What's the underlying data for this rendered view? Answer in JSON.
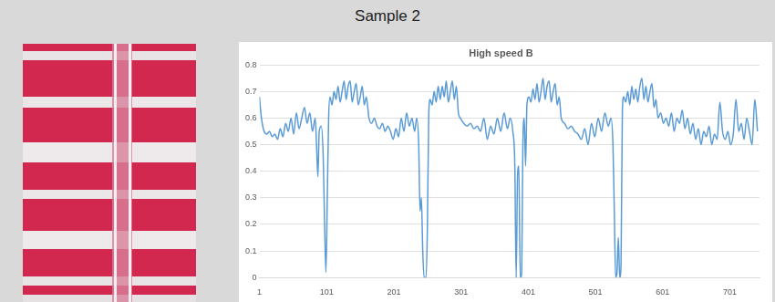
{
  "header": {
    "title": "Sample 2"
  },
  "chart_data": {
    "type": "line",
    "title": "High speed B",
    "x": [
      1,
      4,
      8,
      12,
      16,
      20,
      24,
      28,
      32,
      36,
      40,
      44,
      48,
      52,
      56,
      60,
      64,
      68,
      72,
      76,
      80,
      84,
      86,
      88,
      90,
      93,
      96,
      98,
      100,
      102,
      104,
      106,
      109,
      112,
      115,
      118,
      121,
      124,
      127,
      130,
      133,
      136,
      139,
      142,
      145,
      148,
      151,
      154,
      157,
      160,
      164,
      168,
      172,
      176,
      180,
      184,
      188,
      192,
      196,
      200,
      204,
      208,
      212,
      216,
      220,
      224,
      228,
      232,
      235,
      238,
      240,
      242,
      244,
      246,
      249,
      251,
      253,
      255,
      258,
      261,
      264,
      267,
      270,
      273,
      276,
      279,
      282,
      285,
      288,
      291,
      294,
      297,
      300,
      305,
      310,
      315,
      320,
      325,
      330,
      335,
      340,
      345,
      350,
      355,
      360,
      365,
      370,
      374,
      378,
      381,
      383,
      385,
      387,
      389,
      391,
      393,
      395,
      397,
      399,
      402,
      405,
      408,
      411,
      414,
      417,
      420,
      423,
      426,
      429,
      432,
      435,
      438,
      441,
      444,
      447,
      450,
      455,
      460,
      465,
      470,
      475,
      480,
      485,
      490,
      495,
      500,
      505,
      510,
      515,
      520,
      524,
      527,
      529,
      531,
      533,
      535,
      537,
      539,
      541,
      543,
      546,
      549,
      552,
      555,
      558,
      561,
      564,
      567,
      570,
      573,
      576,
      579,
      582,
      585,
      588,
      591,
      594,
      598,
      602,
      606,
      610,
      614,
      618,
      622,
      626,
      630,
      634,
      638,
      642,
      646,
      650,
      654,
      658,
      662,
      666,
      670,
      674,
      678,
      682,
      686,
      690,
      694,
      698,
      702,
      706,
      710,
      714,
      718,
      722,
      726,
      730,
      734,
      738,
      742
    ],
    "series": [
      {
        "name": "High speed B",
        "color": "#5b9bd5",
        "values": [
          0.68,
          0.6,
          0.55,
          0.54,
          0.55,
          0.53,
          0.54,
          0.52,
          0.56,
          0.53,
          0.58,
          0.55,
          0.6,
          0.54,
          0.62,
          0.56,
          0.6,
          0.64,
          0.58,
          0.62,
          0.55,
          0.6,
          0.5,
          0.38,
          0.55,
          0.57,
          0.45,
          0.2,
          0.02,
          0.3,
          0.6,
          0.68,
          0.65,
          0.7,
          0.67,
          0.72,
          0.66,
          0.7,
          0.74,
          0.67,
          0.72,
          0.74,
          0.66,
          0.7,
          0.73,
          0.65,
          0.68,
          0.72,
          0.65,
          0.68,
          0.6,
          0.58,
          0.6,
          0.57,
          0.56,
          0.58,
          0.55,
          0.57,
          0.55,
          0.52,
          0.56,
          0.53,
          0.6,
          0.55,
          0.62,
          0.57,
          0.6,
          0.55,
          0.6,
          0.5,
          0.25,
          0.3,
          0.1,
          0.0,
          0.0,
          0.2,
          0.62,
          0.67,
          0.65,
          0.7,
          0.66,
          0.72,
          0.67,
          0.72,
          0.68,
          0.74,
          0.66,
          0.7,
          0.74,
          0.67,
          0.72,
          0.62,
          0.6,
          0.58,
          0.57,
          0.58,
          0.56,
          0.57,
          0.55,
          0.6,
          0.52,
          0.57,
          0.54,
          0.6,
          0.55,
          0.62,
          0.56,
          0.6,
          0.55,
          0.42,
          0.0,
          0.38,
          0.42,
          0.0,
          0.01,
          0.5,
          0.6,
          0.42,
          0.65,
          0.68,
          0.66,
          0.71,
          0.67,
          0.73,
          0.66,
          0.7,
          0.75,
          0.67,
          0.72,
          0.74,
          0.66,
          0.7,
          0.73,
          0.65,
          0.68,
          0.6,
          0.58,
          0.56,
          0.57,
          0.55,
          0.54,
          0.52,
          0.56,
          0.5,
          0.58,
          0.53,
          0.6,
          0.55,
          0.62,
          0.57,
          0.6,
          0.5,
          0.25,
          0.0,
          0.02,
          0.15,
          0.0,
          0.05,
          0.63,
          0.68,
          0.66,
          0.7,
          0.65,
          0.72,
          0.67,
          0.71,
          0.66,
          0.72,
          0.75,
          0.67,
          0.72,
          0.66,
          0.7,
          0.73,
          0.64,
          0.67,
          0.6,
          0.62,
          0.58,
          0.6,
          0.57,
          0.62,
          0.55,
          0.6,
          0.58,
          0.63,
          0.56,
          0.6,
          0.54,
          0.58,
          0.52,
          0.56,
          0.5,
          0.55,
          0.53,
          0.57,
          0.5,
          0.54,
          0.52,
          0.66,
          0.55,
          0.52,
          0.55,
          0.5,
          0.54,
          0.67,
          0.55,
          0.58,
          0.52,
          0.6,
          0.55,
          0.5,
          0.67,
          0.55
        ]
      }
    ],
    "xlim": [
      1,
      745
    ],
    "xticks": [
      1,
      101,
      201,
      301,
      401,
      501,
      601,
      701
    ],
    "ylim": [
      0,
      0.8
    ],
    "yticks": [
      0,
      0.1,
      0.2,
      0.3,
      0.4,
      0.5,
      0.6,
      0.7,
      0.8
    ],
    "grid": true
  }
}
